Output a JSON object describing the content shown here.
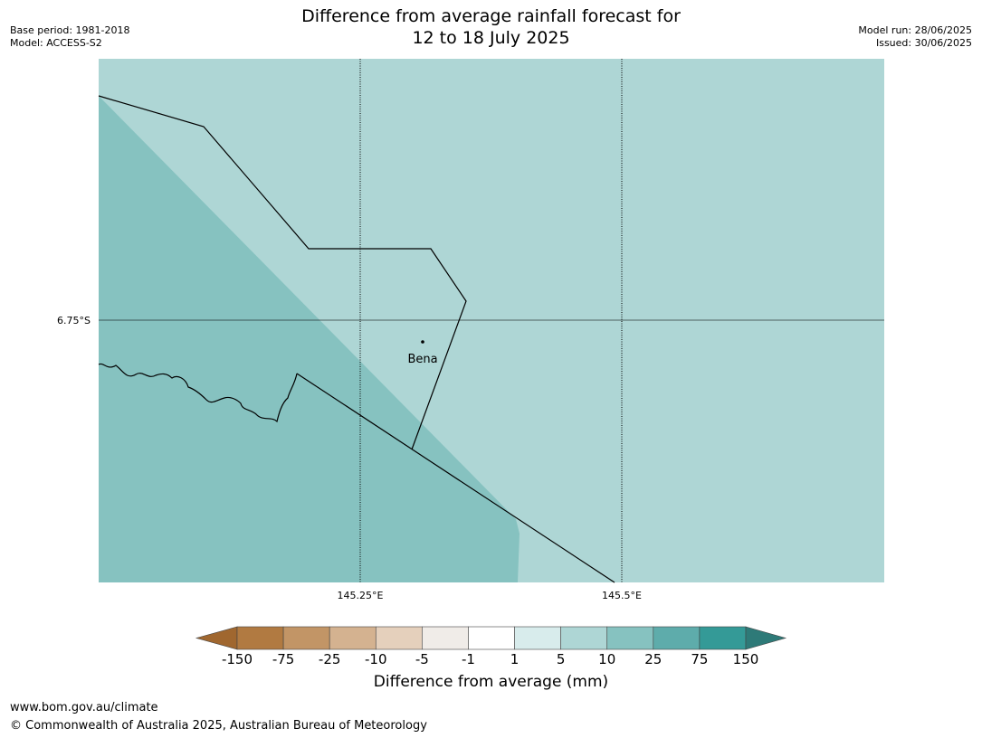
{
  "header": {
    "title_line1": "Difference from average rainfall forecast for",
    "title_line2": "12 to 18 July 2025",
    "base_period": "Base period: 1981-2018",
    "model": "Model: ACCESS-S2",
    "model_run": "Model run: 28/06/2025",
    "issued": "Issued: 30/06/2025"
  },
  "map": {
    "lat_label": "6.75°S",
    "lon_labels": [
      "145.25°E",
      "145.5°E"
    ],
    "place_label": "Bena",
    "colors": {
      "light_teal": "#aed6d5",
      "mid_teal": "#86c2c0",
      "boundary": "#000000",
      "gridline": "#000000"
    }
  },
  "colorbar": {
    "ticks": [
      "-150",
      "-75",
      "-25",
      "-10",
      "-5",
      "-1",
      "1",
      "5",
      "10",
      "25",
      "75",
      "150"
    ],
    "colors": [
      "#a0672f",
      "#b17a41",
      "#c29566",
      "#d4b290",
      "#e5d0bc",
      "#f0ece8",
      "#ffffff",
      "#d8ecec",
      "#aed6d5",
      "#86c2c0",
      "#5eacab",
      "#349a97",
      "#2e7a78"
    ],
    "label": "Difference from average (mm)"
  },
  "footer": {
    "url": "www.bom.gov.au/climate",
    "copyright": "© Commonwealth of Australia 2025, Australian Bureau of Meteorology"
  }
}
